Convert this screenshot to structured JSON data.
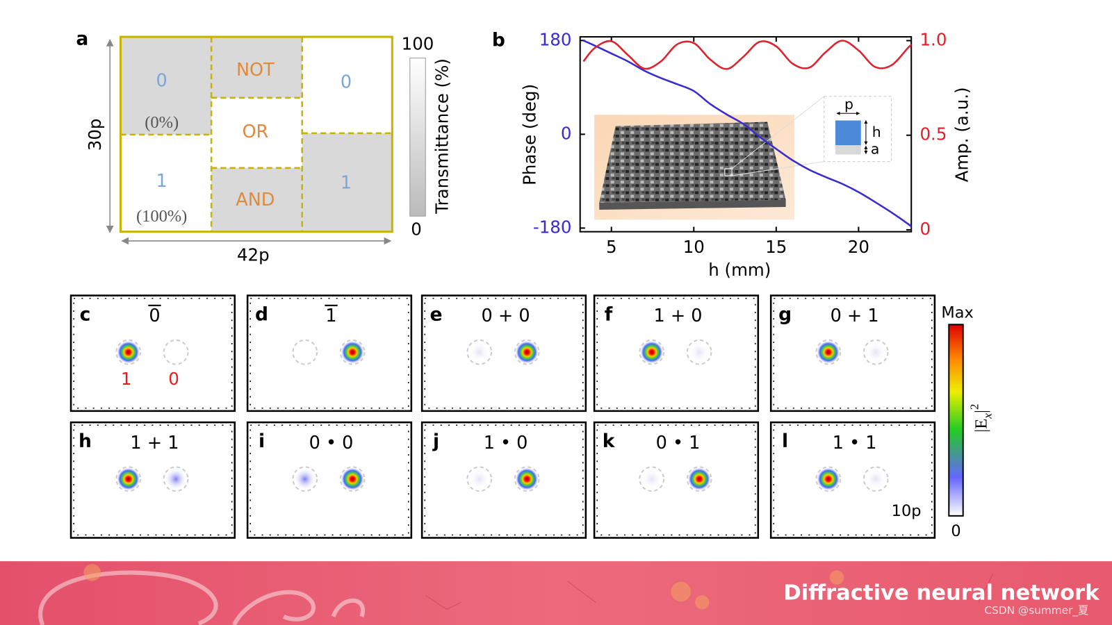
{
  "panel_a": {
    "label": "a",
    "height_label": "30p",
    "width_label": "42p",
    "cells": [
      "0",
      "(0%)",
      "NOT",
      "0",
      "OR",
      "1",
      "(100%)",
      "AND",
      "1"
    ],
    "colorbar": {
      "max": "100",
      "min": "0",
      "label": "Transmittance (%)"
    }
  },
  "chart_data": {
    "type": "line",
    "label": "b",
    "x": [
      3.3,
      4,
      5,
      6,
      7,
      8,
      9,
      10,
      11,
      12,
      13,
      14,
      15,
      16,
      17,
      18,
      19,
      20,
      21,
      22,
      23,
      23.3
    ],
    "series": [
      {
        "name": "Phase",
        "color": "#3a2bd0",
        "values": [
          180,
          170,
          155,
          140,
          122,
          108,
          96,
          83,
          58,
          38,
          20,
          -5,
          -28,
          -50,
          -68,
          -82,
          -95,
          -111,
          -130,
          -150,
          -172,
          -180
        ]
      },
      {
        "name": "Amp.",
        "color": "#e0202a",
        "axis": "y2",
        "values": [
          0.89,
          0.962,
          0.997,
          0.924,
          0.852,
          0.89,
          0.981,
          0.987,
          0.9,
          0.85,
          0.914,
          0.994,
          0.97,
          0.878,
          0.857,
          0.939,
          1.0,
          0.948,
          0.861,
          0.87,
          0.962,
          0.984
        ]
      }
    ],
    "xlim": [
      3.1,
      23.2
    ],
    "xticks": [
      5,
      10,
      15,
      20
    ],
    "ylim": [
      -187,
      187
    ],
    "yticks": [
      -180,
      0,
      180
    ],
    "y2lim": [
      -0.01,
      1.02
    ],
    "y2ticks": [
      0,
      0.5,
      {
        "value": 1,
        "label": "1.0"
      }
    ],
    "xlabel": "h (mm)",
    "ylabel": "Phase (deg)",
    "y2label": "Amp. (a.u.)",
    "inset_labels": [
      "p",
      "h",
      "a"
    ]
  },
  "panels": [
    {
      "label": "c",
      "title": "0",
      "overline": true
    },
    {
      "label": "d",
      "title": "1",
      "overline": true
    },
    {
      "label": "e",
      "title": "0 + 0"
    },
    {
      "label": "f",
      "title": "1 + 0"
    },
    {
      "label": "g",
      "title": "0 + 1"
    },
    {
      "label": "h",
      "title": "1 + 1"
    },
    {
      "label": "i",
      "title": "0 • 0"
    },
    {
      "label": "j",
      "title": "1 • 0"
    },
    {
      "label": "k",
      "title": "0 • 1"
    },
    {
      "label": "l",
      "title": "1 • 1"
    }
  ],
  "outputs": [
    "1",
    "0"
  ],
  "scale_bar": "10p",
  "colorbar": {
    "max": "Max",
    "min": "0",
    "label": {
      "open": "|E",
      "sub": "x",
      "close": "|",
      "sup": "2"
    }
  },
  "banner": {
    "title": "Diffractive neural network",
    "watermark": "CSDN @summer_夏"
  }
}
